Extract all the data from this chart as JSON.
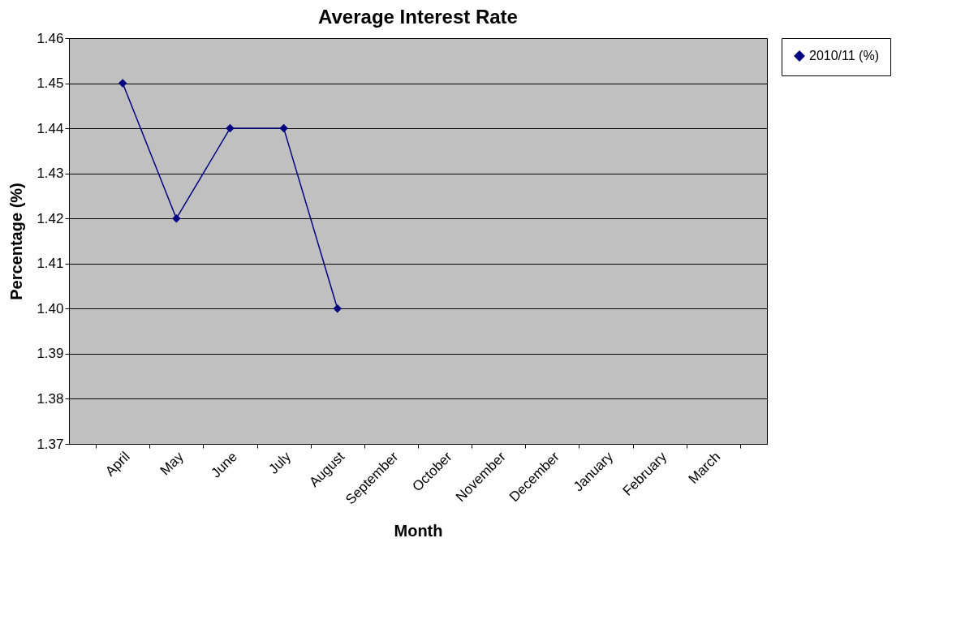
{
  "chart_data": {
    "type": "line",
    "title": "Average Interest Rate",
    "xlabel": "Month",
    "ylabel": "Percentage (%)",
    "categories": [
      "April",
      "May",
      "June",
      "July",
      "August",
      "September",
      "October",
      "November",
      "December",
      "January",
      "February",
      "March"
    ],
    "series": [
      {
        "name": "2010/11 (%)",
        "color": "#000080",
        "values": [
          1.45,
          1.42,
          1.44,
          1.44,
          1.4,
          null,
          null,
          null,
          null,
          null,
          null,
          null
        ]
      }
    ],
    "ylim": [
      1.37,
      1.46
    ],
    "yticks": [
      {
        "value": 1.37,
        "label": "1.37"
      },
      {
        "value": 1.38,
        "label": "1.38"
      },
      {
        "value": 1.39,
        "label": "1.39"
      },
      {
        "value": 1.4,
        "label": "1.40"
      },
      {
        "value": 1.41,
        "label": "1.41"
      },
      {
        "value": 1.42,
        "label": "1.42"
      },
      {
        "value": 1.43,
        "label": "1.43"
      },
      {
        "value": 1.44,
        "label": "1.44"
      },
      {
        "value": 1.45,
        "label": "1.45"
      },
      {
        "value": 1.46,
        "label": "1.46"
      }
    ],
    "grid": "y",
    "legend": "right",
    "marker": "diamond",
    "line_style": "solid"
  }
}
